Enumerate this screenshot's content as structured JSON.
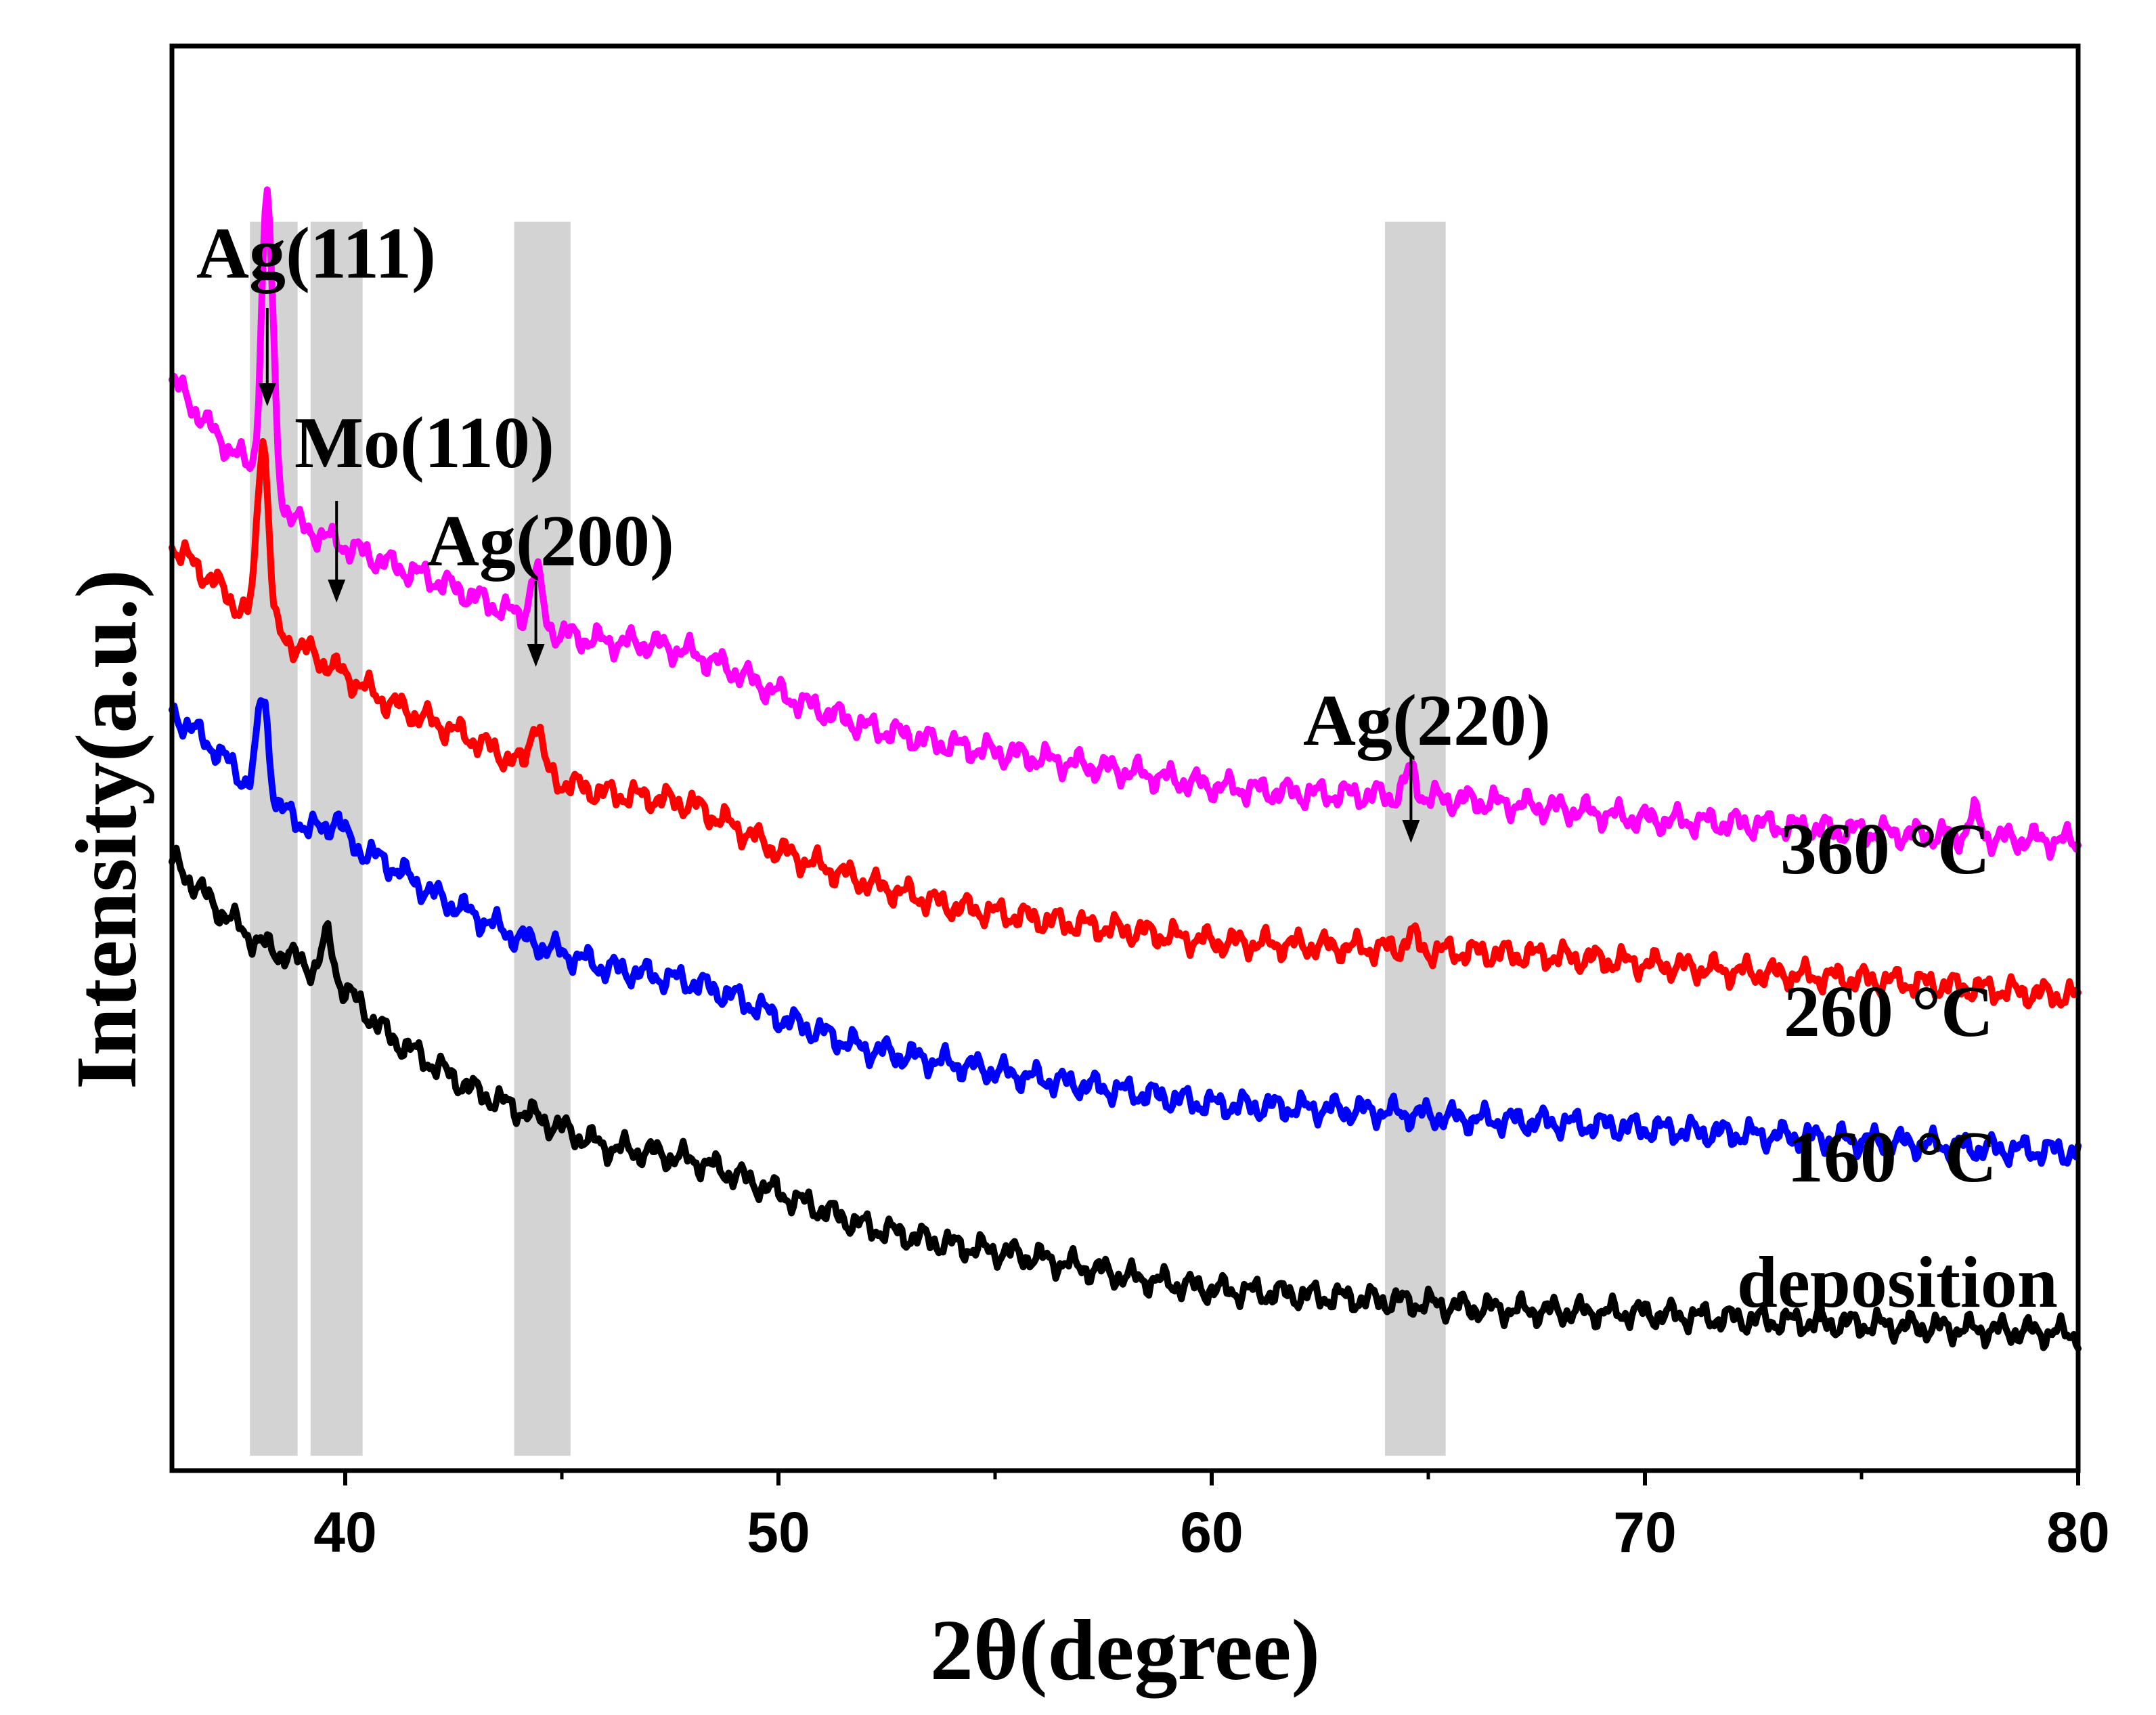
{
  "chart_data": {
    "type": "line",
    "title": "",
    "xlabel": "2θ(degree)",
    "ylabel": "Intensity(a.u.)",
    "xlim": [
      36,
      80
    ],
    "xticks": [
      40,
      50,
      60,
      70,
      80
    ],
    "yticks": [],
    "grid": false,
    "legend": "none",
    "colors": {
      "deposition": "#000000",
      "160": "#0000ff",
      "260": "#ff0000",
      "360": "#ff00ff",
      "band": "#d3d3d3",
      "axis": "#000000"
    },
    "bands": [
      {
        "label": "Ag(111)",
        "range": [
          37.8,
          38.9
        ],
        "peak": 38.2
      },
      {
        "label": "Mo(110)",
        "range": [
          39.2,
          40.4
        ],
        "peak": 39.8
      },
      {
        "label": "Ag(200)",
        "range": [
          43.9,
          45.2
        ],
        "peak": 44.4
      },
      {
        "label": "Ag(220)",
        "range": [
          64.0,
          65.4
        ],
        "peak": 64.6
      }
    ],
    "series": [
      {
        "name": "deposition",
        "label": "deposition",
        "x": [
          36,
          37,
          38,
          39,
          40,
          41,
          42,
          43,
          44,
          45,
          46,
          47,
          48,
          49,
          50,
          52,
          54,
          56,
          58,
          60,
          62,
          64,
          66,
          68,
          70,
          72,
          74,
          76,
          78,
          80
        ],
        "y": [
          3.3,
          3.05,
          2.85,
          2.75,
          2.6,
          2.35,
          2.2,
          2.05,
          1.95,
          1.85,
          1.75,
          1.72,
          1.68,
          1.6,
          1.5,
          1.32,
          1.22,
          1.15,
          1.05,
          0.98,
          0.95,
          0.92,
          0.88,
          0.86,
          0.85,
          0.82,
          0.8,
          0.78,
          0.76,
          0.74
        ],
        "peaks": [
          {
            "x": 39.6,
            "h": 0.22
          }
        ]
      },
      {
        "name": "160 °C",
        "label": "160 °C",
        "x": [
          36,
          37,
          38,
          39,
          40,
          41,
          42,
          43,
          44,
          45,
          46,
          47,
          48,
          49,
          50,
          52,
          54,
          56,
          58,
          60,
          62,
          64,
          66,
          68,
          70,
          72,
          74,
          76,
          78,
          80
        ],
        "y": [
          4.1,
          3.9,
          3.65,
          3.5,
          3.4,
          3.28,
          3.12,
          3.0,
          2.88,
          2.8,
          2.72,
          2.68,
          2.64,
          2.56,
          2.45,
          2.28,
          2.2,
          2.12,
          2.05,
          1.98,
          1.96,
          1.94,
          1.9,
          1.88,
          1.85,
          1.82,
          1.8,
          1.77,
          1.74,
          1.72
        ],
        "peaks": [
          {
            "x": 38.1,
            "h": 0.55
          },
          {
            "x": 39.8,
            "h": 0.12
          }
        ]
      },
      {
        "name": "260 °C",
        "label": "260 °C",
        "x": [
          36,
          37,
          38,
          39,
          40,
          41,
          42,
          43,
          44,
          45,
          46,
          47,
          48,
          49,
          50,
          52,
          54,
          56,
          58,
          60,
          62,
          64,
          66,
          68,
          70,
          72,
          74,
          76,
          78,
          80
        ],
        "y": [
          5.0,
          4.8,
          4.55,
          4.45,
          4.3,
          4.15,
          4.05,
          3.95,
          3.82,
          3.72,
          3.66,
          3.64,
          3.6,
          3.48,
          3.35,
          3.18,
          3.05,
          2.98,
          2.92,
          2.86,
          2.84,
          2.82,
          2.8,
          2.78,
          2.74,
          2.7,
          2.67,
          2.64,
          2.6,
          2.56
        ],
        "peaks": [
          {
            "x": 38.1,
            "h": 1.05
          },
          {
            "x": 44.4,
            "h": 0.28
          },
          {
            "x": 64.6,
            "h": 0.08
          }
        ]
      },
      {
        "name": "360 °C",
        "label": "360 °C",
        "x": [
          36,
          37,
          38,
          39,
          40,
          41,
          42,
          43,
          44,
          45,
          46,
          47,
          48,
          49,
          50,
          52,
          54,
          56,
          58,
          60,
          62,
          64,
          66,
          68,
          70,
          72,
          74,
          76,
          78,
          80
        ],
        "y": [
          5.9,
          5.6,
          5.38,
          5.1,
          5.0,
          4.9,
          4.82,
          4.72,
          4.62,
          4.52,
          4.48,
          4.47,
          4.42,
          4.32,
          4.2,
          4.02,
          3.92,
          3.85,
          3.78,
          3.7,
          3.66,
          3.65,
          3.62,
          3.58,
          3.52,
          3.5,
          3.47,
          3.44,
          3.42,
          3.4
        ],
        "peaks": [
          {
            "x": 38.2,
            "h": 1.55
          },
          {
            "x": 44.4,
            "h": 0.28
          },
          {
            "x": 64.6,
            "h": 0.14
          },
          {
            "x": 77.6,
            "h": 0.12
          }
        ]
      }
    ]
  }
}
